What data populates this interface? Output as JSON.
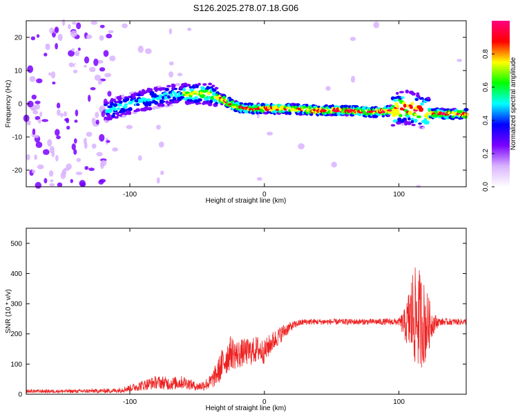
{
  "title": "S126.2025.278.07.18.G06",
  "chart_data": [
    {
      "type": "heatmap",
      "xlabel": "Height of straight line (km)",
      "ylabel": "Frequency (Hz)",
      "xlim": [
        -177,
        150
      ],
      "ylim": [
        -25,
        25
      ],
      "x_ticks": [
        -100,
        0,
        100
      ],
      "y_ticks": [
        -20,
        -10,
        0,
        10,
        20
      ],
      "colorbar": {
        "label": "Normalized spectral amplitude",
        "range": [
          0,
          1
        ],
        "ticks": [
          0.0,
          0.2,
          0.4,
          0.6,
          0.8
        ],
        "colormap": [
          "#ffffff",
          "#d9b3ff",
          "#7a00ff",
          "#0000ff",
          "#00ffff",
          "#00ff00",
          "#ffff00",
          "#ff0000",
          "#ff0080"
        ]
      },
      "ridge": {
        "x": [
          -115,
          -100,
          -80,
          -60,
          -40,
          -30,
          -20,
          -10,
          0,
          20,
          40,
          60,
          80,
          95,
          105,
          115,
          125,
          150
        ],
        "frequency": [
          -2,
          0,
          2,
          3,
          3,
          1,
          -1,
          -1.5,
          -1.5,
          -1.5,
          -2,
          -2,
          -2.5,
          -2,
          -1,
          -2,
          -3,
          -3
        ]
      }
    },
    {
      "type": "line",
      "xlabel": "Height of straight line (km)",
      "ylabel": "SNR (10 * v/v)",
      "xlim": [
        -177,
        150
      ],
      "ylim": [
        0,
        550
      ],
      "x_ticks": [
        -100,
        0,
        100
      ],
      "y_ticks": [
        0,
        100,
        200,
        300,
        400,
        500
      ],
      "series": [
        {
          "color": "#ee2222",
          "x": [
            -177,
            -140,
            -110,
            -100,
            -90,
            -80,
            -70,
            -60,
            -50,
            -45,
            -40,
            -35,
            -30,
            -25,
            -20,
            -15,
            -10,
            -5,
            0,
            5,
            10,
            15,
            20,
            25,
            30,
            40,
            60,
            80,
            100,
            105,
            110,
            115,
            120,
            125,
            130,
            150
          ],
          "snr": [
            10,
            10,
            12,
            20,
            30,
            40,
            35,
            40,
            25,
            30,
            40,
            70,
            110,
            140,
            130,
            140,
            140,
            150,
            140,
            170,
            190,
            210,
            225,
            235,
            240,
            240,
            240,
            240,
            240,
            230,
            260,
            250,
            230,
            235,
            240,
            240
          ],
          "spread": [
            6,
            6,
            8,
            12,
            18,
            22,
            22,
            22,
            14,
            18,
            25,
            40,
            60,
            55,
            50,
            45,
            45,
            45,
            40,
            35,
            30,
            25,
            15,
            12,
            10,
            10,
            10,
            10,
            12,
            60,
            160,
            170,
            130,
            40,
            12,
            10
          ]
        }
      ]
    }
  ]
}
